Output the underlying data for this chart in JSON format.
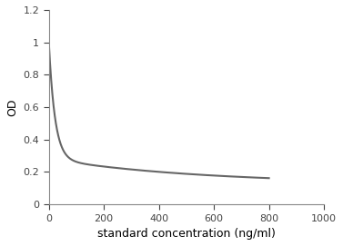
{
  "title": "",
  "xlabel": "standard concentration (ng/ml)",
  "ylabel": "OD",
  "xlim": [
    0,
    1000
  ],
  "ylim": [
    0,
    1.2
  ],
  "xticks": [
    0,
    200,
    400,
    600,
    800,
    1000
  ],
  "yticks": [
    0,
    0.2,
    0.4,
    0.6,
    0.8,
    1.0,
    1.2
  ],
  "curve_color": "#666666",
  "curve_linewidth": 1.5,
  "background_color": "#ffffff",
  "A1": 0.72,
  "k1": 0.045,
  "A2": 0.155,
  "k2": 0.0018,
  "C": 0.125
}
